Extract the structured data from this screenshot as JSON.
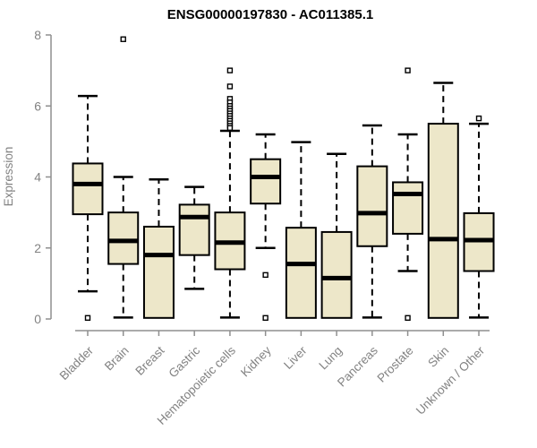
{
  "chart_data": {
    "type": "box",
    "title": "ENSG00000197830 - AC011385.1",
    "xlabel": "",
    "ylabel": "Expression",
    "ylim": [
      0,
      8
    ],
    "yticks": [
      0,
      2,
      4,
      6,
      8
    ],
    "grid": false,
    "legend": false,
    "categories": [
      "Bladder",
      "Brain",
      "Breast",
      "Gastric",
      "Hematopoietic cells",
      "Kidney",
      "Liver",
      "Lung",
      "Pancreas",
      "Prostate",
      "Skin",
      "Unknown / Other"
    ],
    "series": [
      {
        "name": "Bladder",
        "whisker_low": 0.78,
        "q1": 2.95,
        "median": 3.8,
        "q3": 4.38,
        "whisker_high": 6.28,
        "outliers": [
          0.03
        ]
      },
      {
        "name": "Brain",
        "whisker_low": 0.04,
        "q1": 1.55,
        "median": 2.2,
        "q3": 3.0,
        "whisker_high": 4.0,
        "outliers": [
          7.88
        ]
      },
      {
        "name": "Breast",
        "whisker_low": 0.03,
        "q1": 0.03,
        "median": 1.8,
        "q3": 2.6,
        "whisker_high": 3.93,
        "outliers": []
      },
      {
        "name": "Gastric",
        "whisker_low": 0.85,
        "q1": 1.8,
        "median": 2.87,
        "q3": 3.22,
        "whisker_high": 3.72,
        "outliers": []
      },
      {
        "name": "Hematopoietic cells",
        "whisker_low": 0.04,
        "q1": 1.4,
        "median": 2.15,
        "q3": 3.0,
        "whisker_high": 5.3,
        "outliers": [
          7.0,
          6.55,
          6.2,
          6.1,
          6.0,
          5.93,
          5.86,
          5.79,
          5.72,
          5.65,
          5.58,
          5.51,
          5.44,
          5.38
        ]
      },
      {
        "name": "Kidney",
        "whisker_low": 2.0,
        "q1": 3.25,
        "median": 4.0,
        "q3": 4.5,
        "whisker_high": 5.2,
        "outliers": [
          1.24,
          0.03
        ]
      },
      {
        "name": "Liver",
        "whisker_low": 0.03,
        "q1": 0.03,
        "median": 1.55,
        "q3": 2.57,
        "whisker_high": 4.98,
        "outliers": []
      },
      {
        "name": "Lung",
        "whisker_low": 0.03,
        "q1": 0.03,
        "median": 1.15,
        "q3": 2.45,
        "whisker_high": 4.65,
        "outliers": []
      },
      {
        "name": "Pancreas",
        "whisker_low": 0.04,
        "q1": 2.05,
        "median": 2.98,
        "q3": 4.3,
        "whisker_high": 5.45,
        "outliers": []
      },
      {
        "name": "Prostate",
        "whisker_low": 1.35,
        "q1": 2.4,
        "median": 3.52,
        "q3": 3.85,
        "whisker_high": 5.2,
        "outliers": [
          7.0,
          0.03
        ]
      },
      {
        "name": "Skin",
        "whisker_low": 0.03,
        "q1": 0.03,
        "median": 2.25,
        "q3": 5.5,
        "whisker_high": 6.65,
        "outliers": []
      },
      {
        "name": "Unknown / Other",
        "whisker_low": 0.04,
        "q1": 1.35,
        "median": 2.22,
        "q3": 2.98,
        "whisker_high": 5.5,
        "outliers": [
          5.65
        ]
      }
    ],
    "colors": {
      "box_fill": "#EDE7C9",
      "box_border": "#000000",
      "median": "#000000",
      "whisker": "#000000",
      "outlier_fill": "#FFFFFF",
      "outlier_border": "#000000",
      "axis_line": "#8F8F8F",
      "axis_text": "#828282",
      "title": "#000000",
      "background": "#FFFFFF"
    }
  }
}
